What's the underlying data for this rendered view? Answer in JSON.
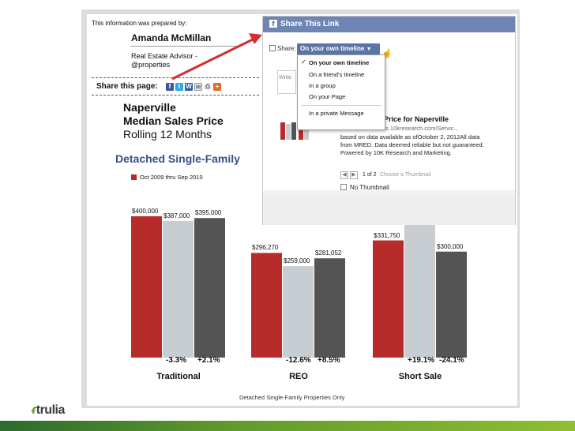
{
  "prepared": {
    "label": "This information was prepared by:",
    "name": "Amanda McMillan",
    "role": "Real Estate Advisor -",
    "company": "@properties"
  },
  "share_page_label": "Share this page:",
  "share_icons": [
    "facebook-icon",
    "twitter-icon",
    "wordpress-icon",
    "email-icon",
    "print-icon",
    "plus-icon"
  ],
  "title": {
    "line1": "Naperville",
    "line2": "Median Sales Price",
    "line3": "Rolling 12 Months"
  },
  "subtitle": "Detached Single-Family",
  "facebook": {
    "header": "Share This Link",
    "share_label": "Share:",
    "dropdown_selected": "On your own timeline",
    "menu": [
      "On your own timeline",
      "On a friend's timeline",
      "In a group",
      "On your Page",
      "In a private Message"
    ],
    "write_placeholder": "Write",
    "link_title": "Price for Naperville",
    "link_url": "ts.10kresearch.com/Servic...",
    "description": "based on data available as ofOctober 2, 2012All data from MRED. Data deemed reliable but not guaranteed. Powered by 10K Research and Marketing.",
    "pager": "1 of 2",
    "choose_thumb": "Choose a Thumbnail",
    "no_thumbnail": "No Thumbnail"
  },
  "chart_data": {
    "type": "bar",
    "title": "Detached Single-Family",
    "legend": [
      "Oct 2009 thru Sep 2010"
    ],
    "categories": [
      "Traditional",
      "REO",
      "Short Sale"
    ],
    "series": [
      {
        "name": "Oct 2009 thru Sep 2010",
        "values": [
          400000,
          296270,
          331750
        ],
        "labels": [
          "$400,000",
          "$296,270",
          "$331,750"
        ]
      },
      {
        "values": [
          387000,
          259000,
          395000
        ],
        "labels": [
          "$387,000",
          "$259,000",
          ""
        ]
      },
      {
        "values": [
          395000,
          281052,
          300000
        ],
        "labels": [
          "$395,000",
          "$281,052",
          "$300,000"
        ]
      }
    ],
    "changes": [
      [
        "-3.3%",
        "+2.1%"
      ],
      [
        "-12.6%",
        "+8.5%"
      ],
      [
        "+19.1%",
        "-24.1%"
      ]
    ],
    "colors": [
      "#b72b2b",
      "#c8cdd1",
      "#545454"
    ],
    "ylim": [
      0,
      450000
    ],
    "footnote": "Detached Single-Family Properties Only"
  },
  "brand": "trulia",
  "colors": {
    "facebook_blue": "#6d84b4",
    "bar_red": "#b72b2b",
    "title_blue": "#3a4f8a",
    "arrow_red": "#d32f2f"
  }
}
